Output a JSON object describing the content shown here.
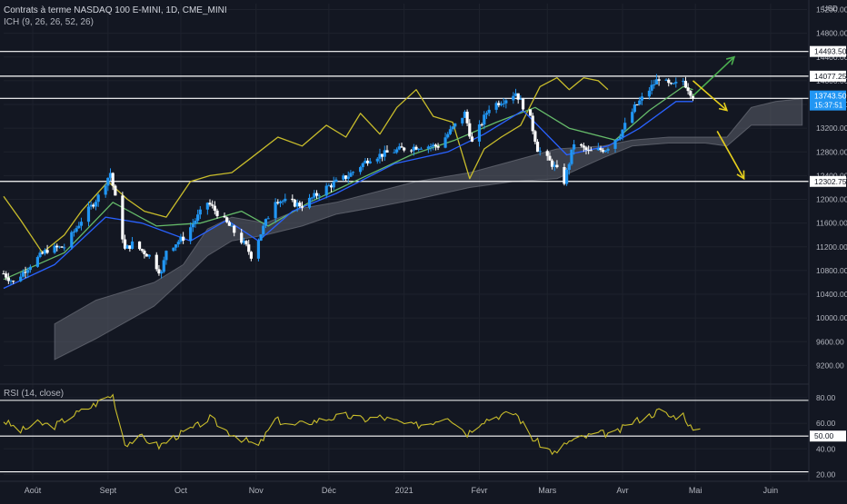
{
  "header": {
    "symbol_line": "Contrats à terme NASDAQ 100 E-MINI, 1D, CME_MINI",
    "indicator_line": "ICH (9, 26, 26, 52, 26)",
    "rsi_line": "RSI (14, close)"
  },
  "colors": {
    "background": "#131722",
    "grid": "#1e222d",
    "candle_up": "#2196f3",
    "candle_down": "#ffffff",
    "tenkan": "#2962ff",
    "kijun": "#66bb6a",
    "chikou": "#c9bd2b",
    "cloud": "#5d606b",
    "rsi": "#c9bd2b",
    "level_line": "#ffffff",
    "arrow_up": "#4caf50",
    "arrow_down": "#e6cf1c",
    "price_tag": "#2196f3"
  },
  "chart_data": [
    {
      "type": "candlestick",
      "title": "",
      "currency": "USD",
      "x_range": [
        "2020-07-20",
        "2021-06-16"
      ],
      "x_ticks": [
        {
          "date": "2020-08-01",
          "label": "Août"
        },
        {
          "date": "2020-09-01",
          "label": "Sept"
        },
        {
          "date": "2020-10-01",
          "label": "Oct"
        },
        {
          "date": "2020-11-01",
          "label": "Nov"
        },
        {
          "date": "2020-12-01",
          "label": "Déc"
        },
        {
          "date": "2021-01-01",
          "label": "2021"
        },
        {
          "date": "2021-02-01",
          "label": "Févr"
        },
        {
          "date": "2021-03-01",
          "label": "Mars"
        },
        {
          "date": "2021-04-01",
          "label": "Avr"
        },
        {
          "date": "2021-05-01",
          "label": "Mai"
        },
        {
          "date": "2021-06-01",
          "label": "Juin"
        }
      ],
      "ylim": [
        8900,
        15300
      ],
      "y_ticks": [
        9200,
        9600,
        10000,
        10400,
        10800,
        11200,
        11600,
        12000,
        12400,
        12800,
        13200,
        13600,
        14000,
        14400,
        14800,
        15200
      ],
      "grid": true,
      "horizontal_levels": [
        14493.5,
        14077.25,
        13703.25,
        12302.75
      ],
      "last_price": {
        "value": 13743.5,
        "label": "13743.50",
        "countdown": "15:37:51"
      },
      "price_path": [
        [
          "2020-07-20",
          10750
        ],
        [
          "2020-07-24",
          10600
        ],
        [
          "2020-07-31",
          10900
        ],
        [
          "2020-08-07",
          11150
        ],
        [
          "2020-08-14",
          11200
        ],
        [
          "2020-08-21",
          11650
        ],
        [
          "2020-08-28",
          12050
        ],
        [
          "2020-09-02",
          12450
        ],
        [
          "2020-09-08",
          11150
        ],
        [
          "2020-09-11",
          11250
        ],
        [
          "2020-09-18",
          11050
        ],
        [
          "2020-09-23",
          10750
        ],
        [
          "2020-09-25",
          11150
        ],
        [
          "2020-10-02",
          11350
        ],
        [
          "2020-10-12",
          11950
        ],
        [
          "2020-10-21",
          11550
        ],
        [
          "2020-10-28",
          11200
        ],
        [
          "2020-10-30",
          11050
        ],
        [
          "2020-11-09",
          12000
        ],
        [
          "2020-11-20",
          11900
        ],
        [
          "2020-11-30",
          12200
        ],
        [
          "2020-12-09",
          12400
        ],
        [
          "2020-12-18",
          12700
        ],
        [
          "2020-12-31",
          12850
        ],
        [
          "2021-01-08",
          12900
        ],
        [
          "2021-01-15",
          12900
        ],
        [
          "2021-01-26",
          13450
        ],
        [
          "2021-01-29",
          12950
        ],
        [
          "2021-02-05",
          13550
        ],
        [
          "2021-02-12",
          13700
        ],
        [
          "2021-02-16",
          13800
        ],
        [
          "2021-02-22",
          13350
        ],
        [
          "2021-02-25",
          12850
        ],
        [
          "2021-03-04",
          12550
        ],
        [
          "2021-03-08",
          12300
        ],
        [
          "2021-03-12",
          12950
        ],
        [
          "2021-03-18",
          12800
        ],
        [
          "2021-03-25",
          12850
        ],
        [
          "2021-03-31",
          13100
        ],
        [
          "2021-04-06",
          13550
        ],
        [
          "2021-04-12",
          13850
        ],
        [
          "2021-04-16",
          14050
        ],
        [
          "2021-04-21",
          13900
        ],
        [
          "2021-04-26",
          14000
        ],
        [
          "2021-04-30",
          13743.5
        ]
      ],
      "tenkan_path": [
        [
          "2020-07-20",
          10500
        ],
        [
          "2020-08-10",
          10900
        ],
        [
          "2020-08-31",
          11700
        ],
        [
          "2020-09-15",
          11600
        ],
        [
          "2020-10-05",
          11300
        ],
        [
          "2020-10-20",
          11650
        ],
        [
          "2020-11-02",
          11300
        ],
        [
          "2020-11-16",
          11800
        ],
        [
          "2020-12-04",
          12100
        ],
        [
          "2020-12-28",
          12600
        ],
        [
          "2021-01-19",
          12800
        ],
        [
          "2021-02-03",
          13100
        ],
        [
          "2021-02-19",
          13500
        ],
        [
          "2021-03-09",
          12750
        ],
        [
          "2021-03-26",
          12900
        ],
        [
          "2021-04-08",
          13200
        ],
        [
          "2021-04-23",
          13650
        ],
        [
          "2021-04-30",
          13650
        ]
      ],
      "kijun_path": [
        [
          "2020-07-20",
          10650
        ],
        [
          "2020-08-14",
          11100
        ],
        [
          "2020-09-03",
          11950
        ],
        [
          "2020-09-21",
          11550
        ],
        [
          "2020-10-09",
          11600
        ],
        [
          "2020-10-26",
          11800
        ],
        [
          "2020-11-06",
          11550
        ],
        [
          "2020-11-23",
          11950
        ],
        [
          "2020-12-14",
          12350
        ],
        [
          "2021-01-04",
          12750
        ],
        [
          "2021-01-22",
          13000
        ],
        [
          "2021-02-08",
          13300
        ],
        [
          "2021-02-24",
          13550
        ],
        [
          "2021-03-10",
          13200
        ],
        [
          "2021-03-29",
          13000
        ],
        [
          "2021-04-12",
          13500
        ],
        [
          "2021-04-26",
          13900
        ],
        [
          "2021-04-30",
          13850
        ]
      ],
      "chikou_path": [
        [
          "2020-07-20",
          12050
        ],
        [
          "2020-07-27",
          11650
        ],
        [
          "2020-08-05",
          11100
        ],
        [
          "2020-08-14",
          11400
        ],
        [
          "2020-08-21",
          11800
        ],
        [
          "2020-09-01",
          12300
        ],
        [
          "2020-09-09",
          12000
        ],
        [
          "2020-09-16",
          11800
        ],
        [
          "2020-09-25",
          11700
        ],
        [
          "2020-10-05",
          12300
        ],
        [
          "2020-10-13",
          12400
        ],
        [
          "2020-10-22",
          12450
        ],
        [
          "2020-10-30",
          12700
        ],
        [
          "2020-11-10",
          13050
        ],
        [
          "2020-11-20",
          12900
        ],
        [
          "2020-11-30",
          13250
        ],
        [
          "2020-12-08",
          13050
        ],
        [
          "2020-12-14",
          13450
        ],
        [
          "2020-12-22",
          13100
        ],
        [
          "2020-12-29",
          13550
        ],
        [
          "2021-01-06",
          13850
        ],
        [
          "2021-01-13",
          13400
        ],
        [
          "2021-01-21",
          13300
        ],
        [
          "2021-01-28",
          12350
        ],
        [
          "2021-02-03",
          12850
        ],
        [
          "2021-02-10",
          13050
        ],
        [
          "2021-02-18",
          13250
        ],
        [
          "2021-02-26",
          13900
        ],
        [
          "2021-03-05",
          14050
        ],
        [
          "2021-03-10",
          13850
        ],
        [
          "2021-03-16",
          14050
        ],
        [
          "2021-03-22",
          14000
        ],
        [
          "2021-03-26",
          13850
        ]
      ],
      "cloud_upper_path": [
        [
          "2020-08-10",
          9900
        ],
        [
          "2020-08-27",
          10300
        ],
        [
          "2020-09-20",
          10600
        ],
        [
          "2020-10-02",
          10900
        ],
        [
          "2020-10-12",
          11500
        ],
        [
          "2020-10-22",
          11700
        ],
        [
          "2020-11-05",
          11600
        ],
        [
          "2020-11-20",
          11850
        ],
        [
          "2020-12-04",
          11950
        ],
        [
          "2020-12-18",
          12100
        ],
        [
          "2021-01-06",
          12300
        ],
        [
          "2021-01-28",
          12450
        ],
        [
          "2021-02-15",
          12650
        ],
        [
          "2021-03-05",
          12850
        ],
        [
          "2021-03-24",
          12900
        ],
        [
          "2021-04-05",
          13000
        ],
        [
          "2021-04-20",
          13050
        ],
        [
          "2021-05-05",
          13050
        ],
        [
          "2021-05-14",
          13050
        ],
        [
          "2021-05-24",
          13550
        ],
        [
          "2021-06-03",
          13650
        ],
        [
          "2021-06-14",
          13700
        ]
      ],
      "cloud_lower_path": [
        [
          "2020-08-10",
          9300
        ],
        [
          "2020-08-27",
          9650
        ],
        [
          "2020-09-20",
          10200
        ],
        [
          "2020-10-02",
          10650
        ],
        [
          "2020-10-12",
          11050
        ],
        [
          "2020-10-22",
          11300
        ],
        [
          "2020-11-05",
          11400
        ],
        [
          "2020-11-20",
          11550
        ],
        [
          "2020-12-04",
          11750
        ],
        [
          "2020-12-18",
          11850
        ],
        [
          "2021-01-06",
          12000
        ],
        [
          "2021-01-28",
          12200
        ],
        [
          "2021-02-15",
          12300
        ],
        [
          "2021-03-05",
          12350
        ],
        [
          "2021-03-24",
          12700
        ],
        [
          "2021-04-05",
          12900
        ],
        [
          "2021-04-20",
          12950
        ],
        [
          "2021-05-05",
          12950
        ],
        [
          "2021-05-14",
          12900
        ],
        [
          "2021-05-24",
          13250
        ],
        [
          "2021-06-03",
          13250
        ],
        [
          "2021-06-14",
          13250
        ]
      ],
      "annotation_arrows": [
        {
          "color": "up",
          "points": [
            [
              "2021-04-30",
              13743.5
            ],
            [
              "2021-05-17",
              14400
            ]
          ]
        },
        {
          "color": "down",
          "points": [
            [
              "2021-04-30",
              14000
            ],
            [
              "2021-05-14",
              13500
            ]
          ]
        },
        {
          "color": "down",
          "points": [
            [
              "2021-05-10",
              13150
            ],
            [
              "2021-05-21",
              12350
            ]
          ]
        }
      ]
    },
    {
      "type": "line",
      "title": "RSI (14, close)",
      "ylim": [
        16,
        90
      ],
      "y_ticks": [
        20,
        40,
        60,
        80
      ],
      "y_tick_labels": [
        "20.00",
        "40.00",
        "60.00",
        "80.00"
      ],
      "reference_lines": [
        78,
        50,
        22
      ],
      "reference_label": "50.00",
      "values_path": [
        [
          "2020-07-20",
          62
        ],
        [
          "2020-07-27",
          54
        ],
        [
          "2020-08-03",
          60
        ],
        [
          "2020-08-10",
          58
        ],
        [
          "2020-08-17",
          66
        ],
        [
          "2020-08-24",
          72
        ],
        [
          "2020-08-31",
          80
        ],
        [
          "2020-09-03",
          82
        ],
        [
          "2020-09-08",
          44
        ],
        [
          "2020-09-15",
          49
        ],
        [
          "2020-09-22",
          42
        ],
        [
          "2020-09-29",
          50
        ],
        [
          "2020-10-06",
          56
        ],
        [
          "2020-10-13",
          64
        ],
        [
          "2020-10-20",
          54
        ],
        [
          "2020-10-27",
          47
        ],
        [
          "2020-11-02",
          42
        ],
        [
          "2020-11-09",
          63
        ],
        [
          "2020-11-16",
          58
        ],
        [
          "2020-11-23",
          61
        ],
        [
          "2020-12-01",
          64
        ],
        [
          "2020-12-08",
          66
        ],
        [
          "2020-12-15",
          63
        ],
        [
          "2020-12-22",
          65
        ],
        [
          "2021-01-04",
          58
        ],
        [
          "2021-01-11",
          60
        ],
        [
          "2021-01-19",
          66
        ],
        [
          "2021-01-27",
          52
        ],
        [
          "2021-02-02",
          62
        ],
        [
          "2021-02-09",
          66
        ],
        [
          "2021-02-16",
          68
        ],
        [
          "2021-02-23",
          48
        ],
        [
          "2021-03-01",
          40
        ],
        [
          "2021-03-05",
          36
        ],
        [
          "2021-03-09",
          45
        ],
        [
          "2021-03-16",
          49
        ],
        [
          "2021-03-22",
          52
        ],
        [
          "2021-03-29",
          52
        ],
        [
          "2021-04-05",
          61
        ],
        [
          "2021-04-12",
          66
        ],
        [
          "2021-04-16",
          70
        ],
        [
          "2021-04-21",
          65
        ],
        [
          "2021-04-26",
          67
        ],
        [
          "2021-04-30",
          54
        ],
        [
          "2021-05-03",
          53
        ]
      ]
    }
  ]
}
